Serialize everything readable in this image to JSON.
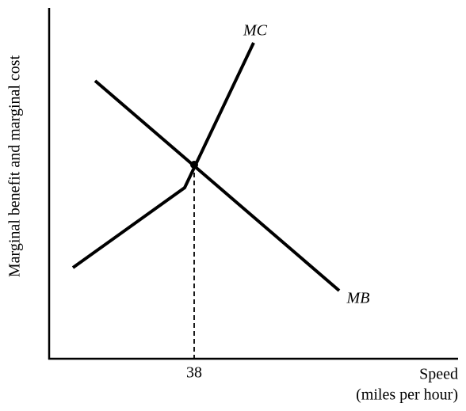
{
  "y_axis_label": "Marginal benefit and marginal cost",
  "x_axis_label": {
    "line1": "Speed",
    "line2": "(miles per hour)"
  },
  "x_tick": 38,
  "curves": [
    {
      "label": "MC"
    },
    {
      "label": "MB"
    }
  ]
}
